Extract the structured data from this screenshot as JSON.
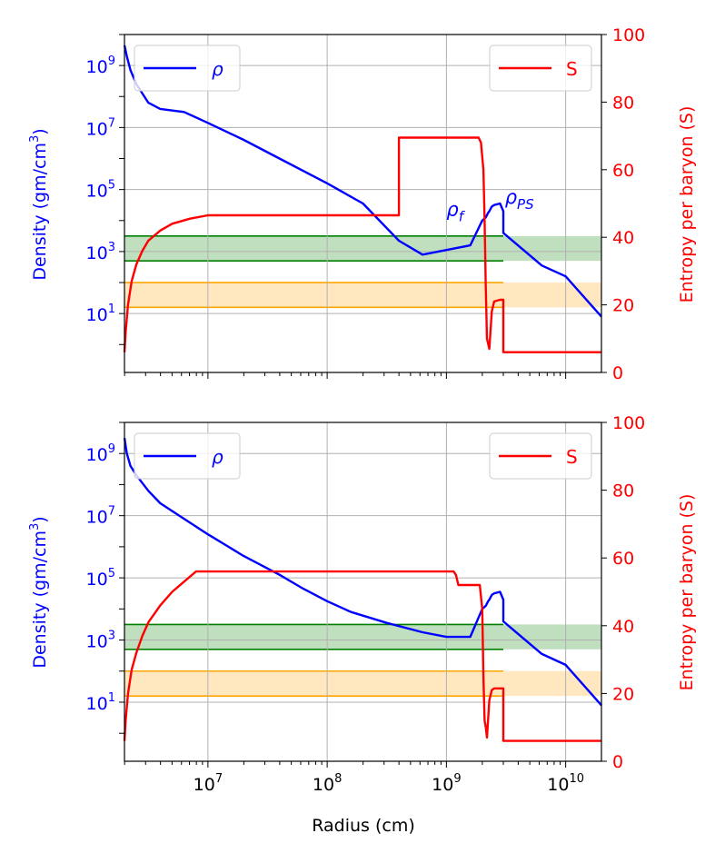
{
  "colors": {
    "density": "#0000ff",
    "entropy": "#ff0000",
    "green_band": "#008000",
    "orange_band": "#ffa500",
    "grid": "#b0b0b0",
    "axis": "#000000"
  },
  "chart_data": [
    {
      "type": "line",
      "panel": "top",
      "xlabel": "",
      "ylabel_left": {
        "main": "Density (gm/cm",
        "sup": "3",
        "end": ")"
      },
      "ylabel_right": "Entropy per baryon (S)",
      "xscale": "log",
      "xlim_exp": [
        6.3,
        10.3
      ],
      "yscale_left": "log",
      "ylim_left_exp": [
        -0.9,
        10.0
      ],
      "ylim_right": [
        0,
        100
      ],
      "x_tick_exps": [
        7,
        8,
        9,
        10
      ],
      "y_left_tick_exps": [
        1,
        3,
        5,
        7,
        9
      ],
      "y_left_ticks": [
        {
          "base": "10",
          "exp": "1"
        },
        {
          "base": "10",
          "exp": "3"
        },
        {
          "base": "10",
          "exp": "5"
        },
        {
          "base": "10",
          "exp": "7"
        },
        {
          "base": "10",
          "exp": "9"
        }
      ],
      "y_right_ticks": [
        "0",
        "20",
        "40",
        "60",
        "80",
        "100"
      ],
      "y_right_tick_values": [
        0,
        20,
        40,
        60,
        80,
        100
      ],
      "grid": true,
      "legend_left": {
        "label": "ρ",
        "position": "upper-left"
      },
      "legend_right": {
        "label": "S",
        "position": "upper-right"
      },
      "bands": [
        {
          "name": "green",
          "ylog_range": [
            2.7,
            3.5
          ]
        },
        {
          "name": "orange",
          "ylog_range": [
            1.2,
            2.0
          ]
        }
      ],
      "annotations": [
        {
          "base": "ρ",
          "sub": "f",
          "logx": 9.0,
          "logy": 4.15
        },
        {
          "base": "ρ",
          "sub": "PS",
          "logx": 9.49,
          "logy": 4.55
        }
      ],
      "series": [
        {
          "name": "ρ",
          "axis": "left",
          "log_x": [
            6.3,
            6.32,
            6.35,
            6.4,
            6.5,
            6.6,
            6.8,
            7.0,
            7.3,
            7.6,
            8.0,
            8.3,
            8.602,
            8.602,
            8.8,
            9.0,
            9.2,
            9.3,
            9.33,
            9.35,
            9.36,
            9.38,
            9.4,
            9.45,
            9.477,
            9.477,
            9.6,
            9.8,
            10.0,
            10.3
          ],
          "log_y": [
            9.65,
            9.3,
            8.85,
            8.4,
            7.8,
            7.6,
            7.5,
            7.15,
            6.6,
            6.0,
            5.2,
            4.55,
            3.35,
            3.35,
            2.9,
            3.05,
            3.2,
            4.0,
            4.1,
            4.25,
            4.3,
            4.45,
            4.5,
            4.55,
            4.3,
            3.6,
            3.2,
            2.55,
            2.2,
            0.9
          ]
        },
        {
          "name": "S",
          "axis": "right",
          "log_x": [
            6.3,
            6.31,
            6.33,
            6.36,
            6.4,
            6.45,
            6.5,
            6.6,
            6.7,
            6.85,
            7.0,
            8.602,
            8.602,
            9.27,
            9.29,
            9.31,
            9.32,
            9.33,
            9.34,
            9.36,
            9.38,
            9.4,
            9.45,
            9.477,
            9.477,
            10.3
          ],
          "y": [
            6,
            12,
            20,
            27,
            32,
            36,
            39,
            42,
            44,
            45.5,
            46.5,
            46.5,
            69.5,
            69.5,
            68,
            60,
            45,
            25,
            10,
            7,
            18,
            21,
            21.5,
            21.5,
            6,
            6
          ]
        }
      ]
    },
    {
      "type": "line",
      "panel": "bottom",
      "xlabel": "Radius (cm)",
      "ylabel_left": {
        "main": "Density (gm/cm",
        "sup": "3",
        "end": ")"
      },
      "ylabel_right": "Entropy per baryon (S)",
      "xscale": "log",
      "xlim_exp": [
        6.3,
        10.3
      ],
      "yscale_left": "log",
      "ylim_left_exp": [
        -0.9,
        10.0
      ],
      "ylim_right": [
        0,
        100
      ],
      "x_tick_exps": [
        7,
        8,
        9,
        10
      ],
      "x_ticks": [
        {
          "base": "10",
          "exp": "7"
        },
        {
          "base": "10",
          "exp": "8"
        },
        {
          "base": "10",
          "exp": "9"
        },
        {
          "base": "10",
          "exp": "10"
        }
      ],
      "y_left_tick_exps": [
        1,
        3,
        5,
        7,
        9
      ],
      "y_left_ticks": [
        {
          "base": "10",
          "exp": "1"
        },
        {
          "base": "10",
          "exp": "3"
        },
        {
          "base": "10",
          "exp": "5"
        },
        {
          "base": "10",
          "exp": "7"
        },
        {
          "base": "10",
          "exp": "9"
        }
      ],
      "y_right_ticks": [
        "0",
        "20",
        "40",
        "60",
        "80",
        "100"
      ],
      "y_right_tick_values": [
        0,
        20,
        40,
        60,
        80,
        100
      ],
      "grid": true,
      "legend_left": {
        "label": "ρ",
        "position": "upper-left"
      },
      "legend_right": {
        "label": "S",
        "position": "upper-right"
      },
      "bands": [
        {
          "name": "green",
          "ylog_range": [
            2.7,
            3.5
          ]
        },
        {
          "name": "orange",
          "ylog_range": [
            1.2,
            2.0
          ]
        }
      ],
      "annotations": [],
      "series": [
        {
          "name": "ρ",
          "axis": "left",
          "log_x": [
            6.3,
            6.32,
            6.35,
            6.4,
            6.5,
            6.6,
            6.8,
            7.0,
            7.3,
            7.6,
            7.8,
            8.0,
            8.2,
            8.5,
            8.8,
            9.0,
            9.2,
            9.3,
            9.33,
            9.35,
            9.36,
            9.38,
            9.4,
            9.45,
            9.477,
            9.477,
            9.6,
            9.8,
            10.0,
            10.3
          ],
          "log_y": [
            9.5,
            9.0,
            8.6,
            8.3,
            7.8,
            7.4,
            6.9,
            6.4,
            5.7,
            5.1,
            4.65,
            4.25,
            3.9,
            3.55,
            3.25,
            3.1,
            3.1,
            4.0,
            4.1,
            4.25,
            4.3,
            4.45,
            4.5,
            4.55,
            4.3,
            3.6,
            3.2,
            2.55,
            2.2,
            0.9
          ]
        },
        {
          "name": "S",
          "axis": "right",
          "log_x": [
            6.3,
            6.31,
            6.33,
            6.36,
            6.4,
            6.45,
            6.5,
            6.6,
            6.7,
            6.8,
            6.9,
            9.06,
            9.08,
            9.1,
            9.28,
            9.3,
            9.31,
            9.32,
            9.33,
            9.34,
            9.36,
            9.38,
            9.4,
            9.45,
            9.477,
            9.477,
            10.3
          ],
          "y": [
            6,
            12,
            20,
            27,
            32,
            37,
            41,
            46,
            50,
            53,
            56,
            56,
            55,
            52,
            52,
            45,
            25,
            12,
            10,
            7,
            18,
            21,
            21.5,
            21.5,
            21.5,
            6,
            6
          ]
        }
      ]
    }
  ]
}
